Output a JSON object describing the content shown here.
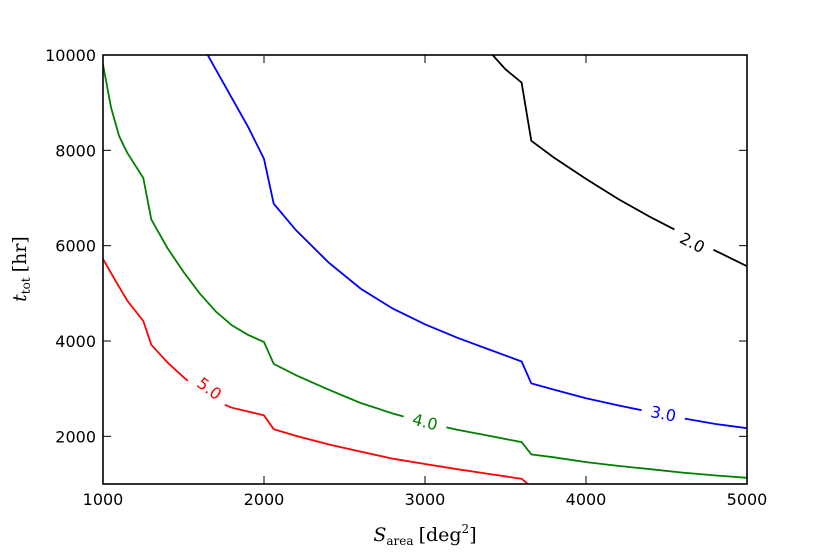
{
  "chart_data": {
    "type": "line",
    "xlabel": "S_area [deg²]",
    "ylabel": "t_tot [hr]",
    "xlabel_main": "S",
    "xlabel_sub": "area",
    "xlabel_unit": "[deg",
    "xlabel_sup": "2",
    "xlabel_close": "]",
    "ylabel_main": "t",
    "ylabel_sub": "tot",
    "ylabel_unit": "[hr]",
    "xlim": [
      1000,
      5000
    ],
    "ylim": [
      1000,
      10000
    ],
    "xticks": [
      1000,
      2000,
      3000,
      4000,
      5000
    ],
    "yticks": [
      2000,
      4000,
      6000,
      8000,
      10000
    ],
    "grid": false,
    "series": [
      {
        "name": "5.0",
        "label": "5.0",
        "color": "#ff0000",
        "label_pos": [
          1660,
          3000
        ],
        "points": [
          [
            1000,
            5720
          ],
          [
            1080,
            5250
          ],
          [
            1150,
            4850
          ],
          [
            1250,
            4420
          ],
          [
            1300,
            3920
          ],
          [
            1400,
            3550
          ],
          [
            1500,
            3240
          ],
          [
            1600,
            2960
          ],
          [
            1700,
            2740
          ],
          [
            1800,
            2600
          ],
          [
            1900,
            2520
          ],
          [
            2000,
            2440
          ],
          [
            2060,
            2150
          ],
          [
            2200,
            2010
          ],
          [
            2400,
            1830
          ],
          [
            2600,
            1680
          ],
          [
            2800,
            1530
          ],
          [
            3000,
            1420
          ],
          [
            3200,
            1310
          ],
          [
            3400,
            1210
          ],
          [
            3600,
            1110
          ],
          [
            3640,
            1000
          ]
        ]
      },
      {
        "name": "4.0",
        "label": "4.0",
        "color": "#008000",
        "label_pos": [
          3000,
          2300
        ],
        "points": [
          [
            1000,
            9800
          ],
          [
            1050,
            8900
          ],
          [
            1100,
            8300
          ],
          [
            1150,
            7950
          ],
          [
            1250,
            7420
          ],
          [
            1300,
            6550
          ],
          [
            1400,
            5950
          ],
          [
            1500,
            5450
          ],
          [
            1600,
            5000
          ],
          [
            1700,
            4620
          ],
          [
            1800,
            4330
          ],
          [
            1900,
            4130
          ],
          [
            2000,
            3980
          ],
          [
            2060,
            3520
          ],
          [
            2200,
            3280
          ],
          [
            2400,
            2980
          ],
          [
            2600,
            2700
          ],
          [
            2800,
            2480
          ],
          [
            3000,
            2290
          ],
          [
            3200,
            2140
          ],
          [
            3400,
            2010
          ],
          [
            3600,
            1880
          ],
          [
            3660,
            1620
          ],
          [
            3800,
            1560
          ],
          [
            4000,
            1460
          ],
          [
            4200,
            1380
          ],
          [
            4400,
            1310
          ],
          [
            4600,
            1240
          ],
          [
            4800,
            1180
          ],
          [
            5000,
            1130
          ]
        ]
      },
      {
        "name": "3.0",
        "label": "3.0",
        "color": "#0000ff",
        "label_pos": [
          4480,
          2470
        ],
        "points": [
          [
            1650,
            10000
          ],
          [
            1700,
            9700
          ],
          [
            1800,
            9100
          ],
          [
            1900,
            8500
          ],
          [
            2000,
            7820
          ],
          [
            2060,
            6880
          ],
          [
            2200,
            6320
          ],
          [
            2400,
            5650
          ],
          [
            2600,
            5100
          ],
          [
            2800,
            4680
          ],
          [
            3000,
            4350
          ],
          [
            3200,
            4070
          ],
          [
            3400,
            3820
          ],
          [
            3600,
            3570
          ],
          [
            3660,
            3110
          ],
          [
            3800,
            2980
          ],
          [
            4000,
            2800
          ],
          [
            4200,
            2650
          ],
          [
            4400,
            2510
          ],
          [
            4600,
            2380
          ],
          [
            4800,
            2260
          ],
          [
            5000,
            2170
          ]
        ]
      },
      {
        "name": "2.0",
        "label": "2.0",
        "color": "#000000",
        "label_pos": [
          4660,
          6060
        ],
        "points": [
          [
            3420,
            10000
          ],
          [
            3500,
            9700
          ],
          [
            3600,
            9420
          ],
          [
            3660,
            8200
          ],
          [
            3800,
            7850
          ],
          [
            4000,
            7400
          ],
          [
            4200,
            6980
          ],
          [
            4400,
            6600
          ],
          [
            4600,
            6250
          ],
          [
            4800,
            5900
          ],
          [
            5000,
            5570
          ]
        ]
      }
    ]
  }
}
